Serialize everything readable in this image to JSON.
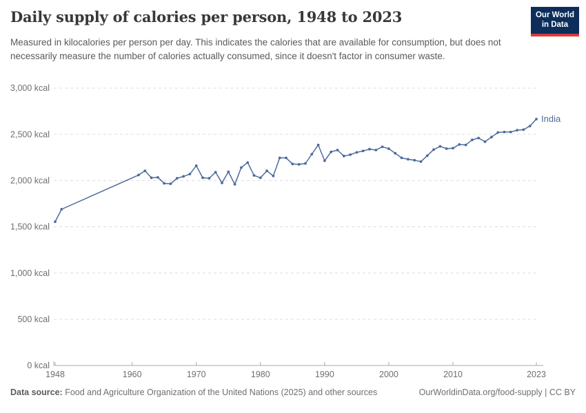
{
  "header": {
    "title": "Daily supply of calories per person, 1948 to 2023",
    "subtitle": "Measured in kilocalories per person per day. This indicates the calories that are available for consumption, but does not necessarily measure the number of calories actually consumed, since it doesn't factor in consumer waste.",
    "logo_line1": "Our World",
    "logo_line2": "in Data"
  },
  "colors": {
    "series_blue": "#4C6A9C",
    "grid": "#dcdcdc",
    "axis": "#a8a8a8",
    "tick_label": "#6e6e6e",
    "logo_navy": "#0d2e5b",
    "logo_red": "#d93a3a"
  },
  "chart_data": {
    "type": "line",
    "title": "Daily supply of calories per person, 1948 to 2023",
    "unit": "kcal",
    "xlim": [
      1948,
      2023
    ],
    "ylim": [
      0,
      3000
    ],
    "x_ticks": [
      1948,
      1960,
      1970,
      1980,
      1990,
      2000,
      2010,
      2023
    ],
    "y_ticks": [
      0,
      500,
      1000,
      1500,
      2000,
      2500,
      3000
    ],
    "y_tick_suffix": " kcal",
    "grid": "horizontal-dashed",
    "legend_position": "end-of-line-label",
    "series": [
      {
        "name": "India",
        "color": "#4C6A9C",
        "note": "gap in data between 1949 and 1961 drawn as straight segment",
        "points": [
          [
            1948,
            1555
          ],
          [
            1949,
            1690
          ],
          [
            1961,
            2060
          ],
          [
            1962,
            2105
          ],
          [
            1963,
            2030
          ],
          [
            1964,
            2035
          ],
          [
            1965,
            1970
          ],
          [
            1966,
            1965
          ],
          [
            1967,
            2025
          ],
          [
            1968,
            2045
          ],
          [
            1969,
            2070
          ],
          [
            1970,
            2160
          ],
          [
            1971,
            2030
          ],
          [
            1972,
            2025
          ],
          [
            1973,
            2090
          ],
          [
            1974,
            1975
          ],
          [
            1975,
            2095
          ],
          [
            1976,
            1960
          ],
          [
            1977,
            2140
          ],
          [
            1978,
            2195
          ],
          [
            1979,
            2055
          ],
          [
            1980,
            2030
          ],
          [
            1981,
            2105
          ],
          [
            1982,
            2050
          ],
          [
            1983,
            2245
          ],
          [
            1984,
            2245
          ],
          [
            1985,
            2180
          ],
          [
            1986,
            2175
          ],
          [
            1987,
            2185
          ],
          [
            1988,
            2285
          ],
          [
            1989,
            2385
          ],
          [
            1990,
            2215
          ],
          [
            1991,
            2310
          ],
          [
            1992,
            2330
          ],
          [
            1993,
            2265
          ],
          [
            1994,
            2280
          ],
          [
            1995,
            2305
          ],
          [
            1996,
            2320
          ],
          [
            1997,
            2340
          ],
          [
            1998,
            2330
          ],
          [
            1999,
            2365
          ],
          [
            2000,
            2345
          ],
          [
            2001,
            2295
          ],
          [
            2002,
            2245
          ],
          [
            2003,
            2230
          ],
          [
            2004,
            2220
          ],
          [
            2005,
            2205
          ],
          [
            2006,
            2270
          ],
          [
            2007,
            2335
          ],
          [
            2008,
            2370
          ],
          [
            2009,
            2345
          ],
          [
            2010,
            2350
          ],
          [
            2011,
            2390
          ],
          [
            2012,
            2385
          ],
          [
            2013,
            2440
          ],
          [
            2014,
            2460
          ],
          [
            2015,
            2420
          ],
          [
            2016,
            2470
          ],
          [
            2017,
            2520
          ],
          [
            2018,
            2525
          ],
          [
            2019,
            2525
          ],
          [
            2020,
            2545
          ],
          [
            2021,
            2550
          ],
          [
            2022,
            2590
          ],
          [
            2023,
            2665
          ]
        ]
      }
    ]
  },
  "footer": {
    "source_label": "Data source:",
    "source_text": " Food and Agriculture Organization of the United Nations (2025) and other sources",
    "right_text": "OurWorldinData.org/food-supply | CC BY"
  }
}
